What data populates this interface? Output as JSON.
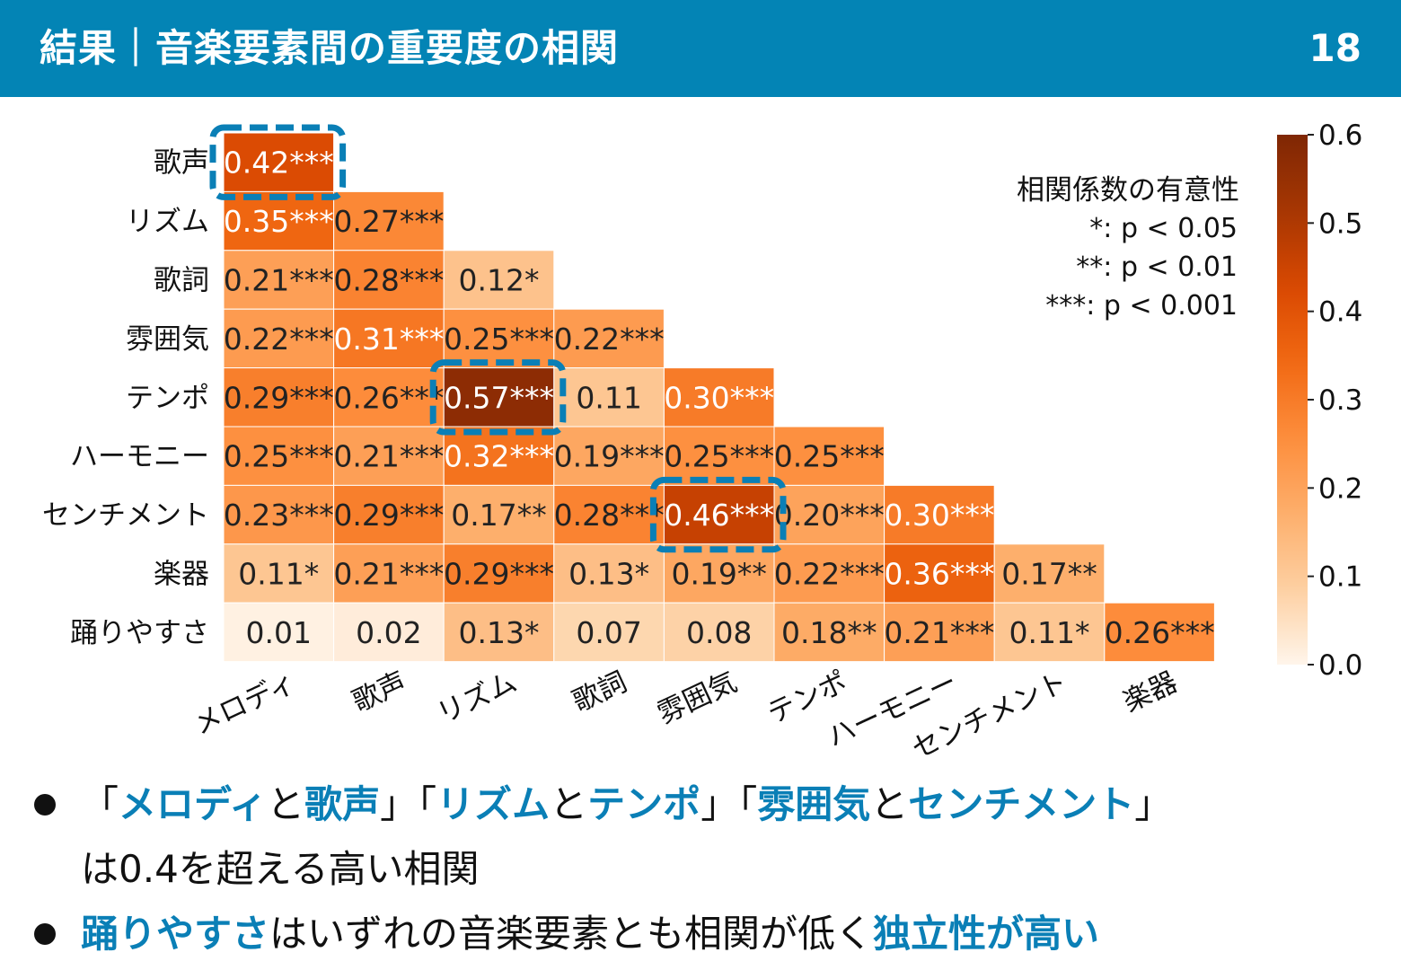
{
  "header": {
    "title": "結果｜音楽要素間の重要度の相関",
    "slide_number": "18"
  },
  "chart_data": {
    "type": "heatmap",
    "x_labels": [
      "メロディ",
      "歌声",
      "リズム",
      "歌詞",
      "雰囲気",
      "テンポ",
      "ハーモニー",
      "センチメント",
      "楽器"
    ],
    "y_labels": [
      "歌声",
      "リズム",
      "歌詞",
      "雰囲気",
      "テンポ",
      "ハーモニー",
      "センチメント",
      "楽器",
      "踊りやすさ"
    ],
    "values": [
      [
        0.42
      ],
      [
        0.35,
        0.27
      ],
      [
        0.21,
        0.28,
        0.12
      ],
      [
        0.22,
        0.31,
        0.25,
        0.22
      ],
      [
        0.29,
        0.26,
        0.57,
        0.11,
        0.3
      ],
      [
        0.25,
        0.21,
        0.32,
        0.19,
        0.25,
        0.25
      ],
      [
        0.23,
        0.29,
        0.17,
        0.28,
        0.46,
        0.2,
        0.3
      ],
      [
        0.11,
        0.21,
        0.29,
        0.13,
        0.19,
        0.22,
        0.36,
        0.17
      ],
      [
        0.01,
        0.02,
        0.13,
        0.07,
        0.08,
        0.18,
        0.21,
        0.11,
        0.26
      ]
    ],
    "significance": [
      [
        "***"
      ],
      [
        "***",
        "***"
      ],
      [
        "***",
        "***",
        "*"
      ],
      [
        "***",
        "***",
        "***",
        "***"
      ],
      [
        "***",
        "***",
        "***",
        "",
        "***"
      ],
      [
        "***",
        "***",
        "***",
        "***",
        "***",
        "***"
      ],
      [
        "***",
        "***",
        "**",
        "***",
        "***",
        "***",
        "***"
      ],
      [
        "*",
        "***",
        "***",
        "*",
        "**",
        "***",
        "***",
        "**"
      ],
      [
        "",
        "",
        "*",
        "",
        "",
        "**",
        "***",
        "*",
        "***"
      ]
    ],
    "highlighted_cells": [
      {
        "row": 0,
        "col": 0
      },
      {
        "row": 4,
        "col": 2
      },
      {
        "row": 6,
        "col": 4
      }
    ],
    "colorbar": {
      "min": 0.0,
      "max": 0.6,
      "ticks": [
        "0.0",
        "0.1",
        "0.2",
        "0.3",
        "0.4",
        "0.5",
        "0.6"
      ],
      "colors": [
        "#fff5eb",
        "#fdd0a2",
        "#fdae6b",
        "#fd8d3c",
        "#f16913",
        "#d94801",
        "#a63603",
        "#7f2704"
      ]
    },
    "legend": {
      "title": "相関係数の有意性",
      "lines": [
        "*: p < 0.05",
        "**: p < 0.01",
        "***: p < 0.001"
      ]
    },
    "highlight_color": "#0a7fb6"
  },
  "bullets": {
    "b1": {
      "open1": "「",
      "melody": "メロディ",
      "to1": "と",
      "voice": "歌声",
      "close1": "」",
      "open2": "「",
      "rhythm": "リズム",
      "to2": "と",
      "tempo": "テンポ",
      "close2": "」",
      "open3": "「",
      "mood": "雰囲気",
      "to3": "と",
      "sentiment": "センチメント",
      "close3": "」",
      "line2": "は0.4を超える高い相関"
    },
    "b2": {
      "danceability": "踊りやすさ",
      "middle": "はいずれの音楽要素とも相関が低く",
      "conclusion": "独立性が高い"
    }
  }
}
